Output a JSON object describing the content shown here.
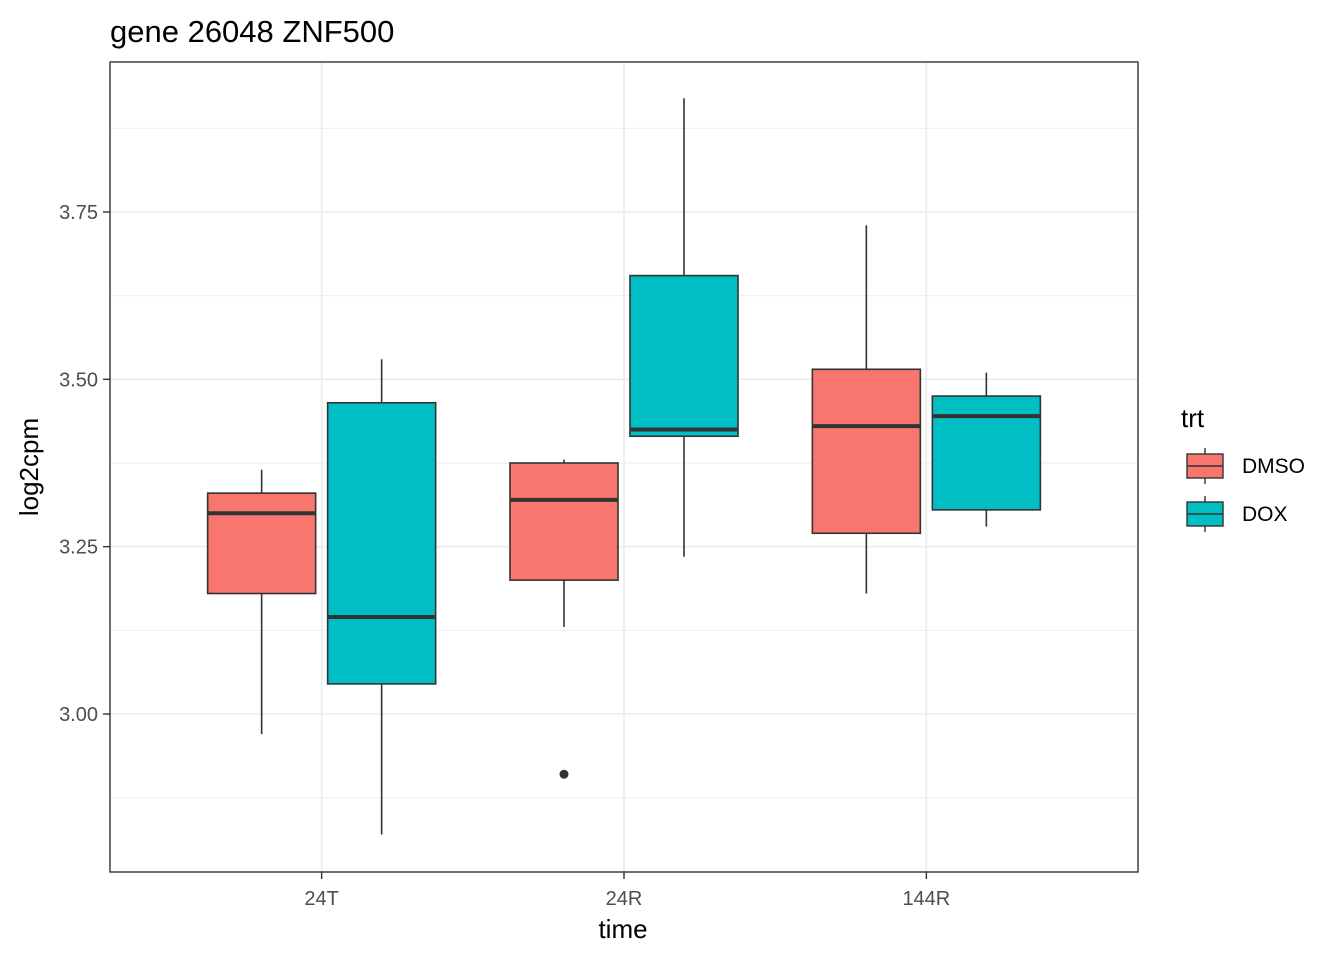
{
  "chart_data": {
    "type": "boxplot",
    "title": "gene 26048 ZNF500",
    "xlabel": "time",
    "ylabel": "log2cpm",
    "categories": [
      "24T",
      "24R",
      "144R"
    ],
    "ylim": [
      2.8,
      4.0
    ],
    "yticks": [
      3.0,
      3.25,
      3.5,
      3.75
    ],
    "ytick_labels": [
      "3.00",
      "3.25",
      "3.50",
      "3.75"
    ],
    "grid": true,
    "legend": {
      "title": "trt",
      "position": "right"
    },
    "series": [
      {
        "name": "DMSO",
        "color": "#F8766D",
        "boxes": [
          {
            "category": "24T",
            "min": 2.97,
            "q1": 3.18,
            "median": 3.3,
            "q3": 3.33,
            "max": 3.365,
            "outliers": []
          },
          {
            "category": "24R",
            "min": 3.13,
            "q1": 3.2,
            "median": 3.32,
            "q3": 3.375,
            "max": 3.38,
            "outliers": [
              2.91
            ]
          },
          {
            "category": "144R",
            "min": 3.18,
            "q1": 3.27,
            "median": 3.43,
            "q3": 3.515,
            "max": 3.73,
            "outliers": []
          }
        ]
      },
      {
        "name": "DOX",
        "color": "#00BFC4",
        "boxes": [
          {
            "category": "24T",
            "min": 2.82,
            "q1": 3.045,
            "median": 3.145,
            "q3": 3.465,
            "max": 3.53,
            "outliers": []
          },
          {
            "category": "24R",
            "min": 3.235,
            "q1": 3.415,
            "median": 3.425,
            "q3": 3.655,
            "max": 3.92,
            "outliers": []
          },
          {
            "category": "144R",
            "min": 3.28,
            "q1": 3.305,
            "median": 3.445,
            "q3": 3.475,
            "max": 3.51,
            "outliers": []
          }
        ]
      }
    ]
  }
}
